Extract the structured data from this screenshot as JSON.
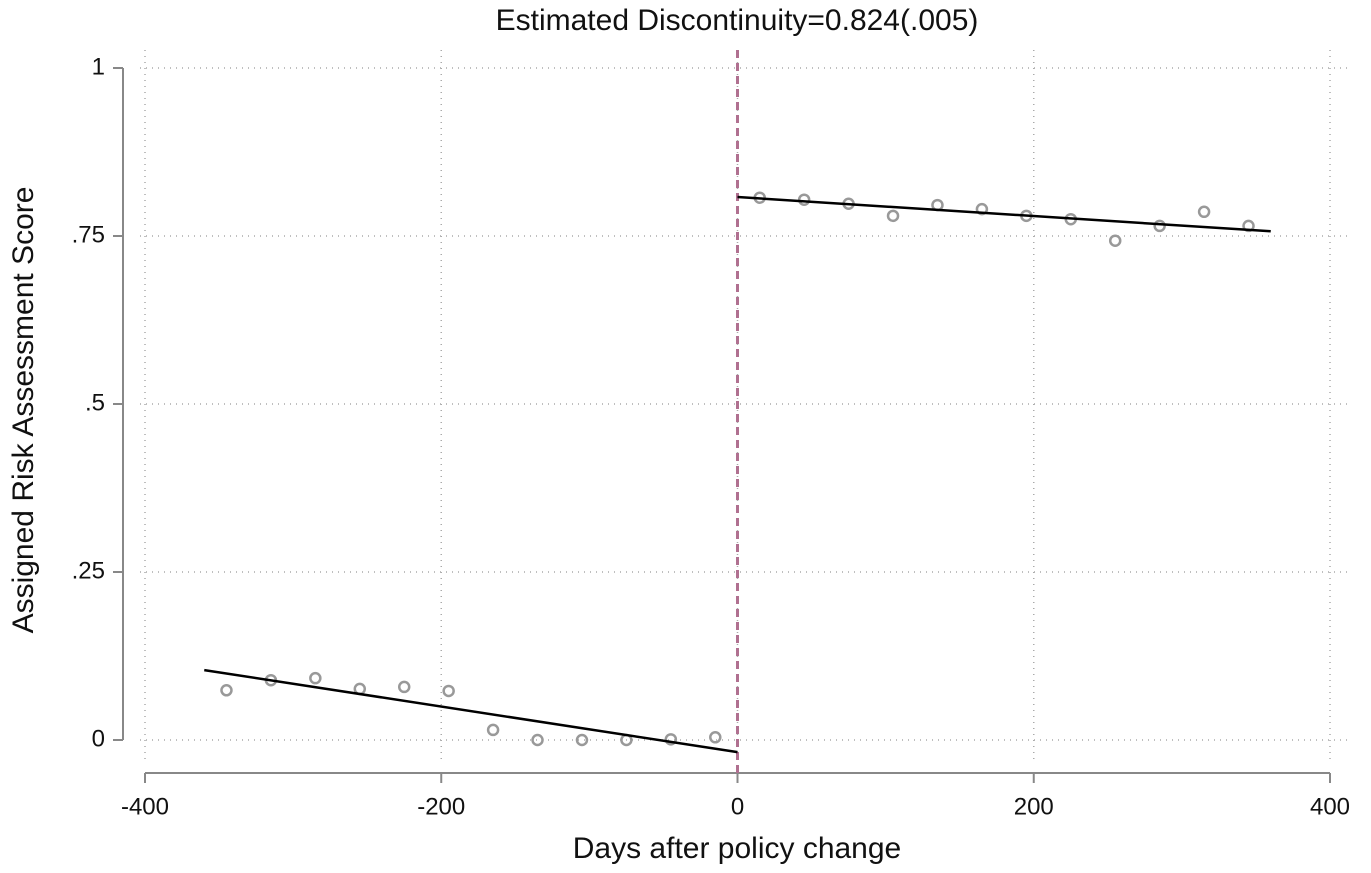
{
  "chart_data": {
    "type": "scatter",
    "title": "Estimated Discontinuity=0.824(.005)",
    "xlabel": "Days after policy change",
    "ylabel": "Assigned Risk Assessment Score",
    "xlim": [
      -400,
      400
    ],
    "xticks": [
      -400,
      -200,
      0,
      200,
      400
    ],
    "ylim": [
      0,
      1
    ],
    "yticks": [
      0,
      {
        "value": 0.25,
        "label": ".25"
      },
      {
        "value": 0.5,
        "label": ".5"
      },
      {
        "value": 0.75,
        "label": ".75"
      },
      1
    ],
    "grid": true,
    "vline": {
      "x": 0,
      "color": "#b07090"
    },
    "series": [
      {
        "mode": "markers",
        "color": "#999999",
        "x": [
          -345,
          -315,
          -285,
          -255,
          -225,
          -195,
          -165,
          -135,
          -105,
          -75,
          -45,
          -15
        ],
        "values": [
          0.074,
          0.089,
          0.092,
          0.076,
          0.079,
          0.073,
          0.015,
          0,
          0,
          0,
          0.001,
          0.004
        ]
      },
      {
        "mode": "markers",
        "color": "#999999",
        "x": [
          15,
          45,
          75,
          105,
          135,
          165,
          195,
          225,
          255,
          285,
          315,
          345
        ],
        "values": [
          0.807,
          0.804,
          0.798,
          0.78,
          0.796,
          0.79,
          0.78,
          0.775,
          0.743,
          0.765,
          0.786,
          0.765
        ]
      },
      {
        "mode": "line",
        "color": "#000000",
        "x": [
          -360,
          0
        ],
        "values": [
          0.104,
          -0.018
        ]
      },
      {
        "mode": "line",
        "color": "#000000",
        "x": [
          0,
          360
        ],
        "values": [
          0.808,
          0.757
        ]
      }
    ]
  }
}
